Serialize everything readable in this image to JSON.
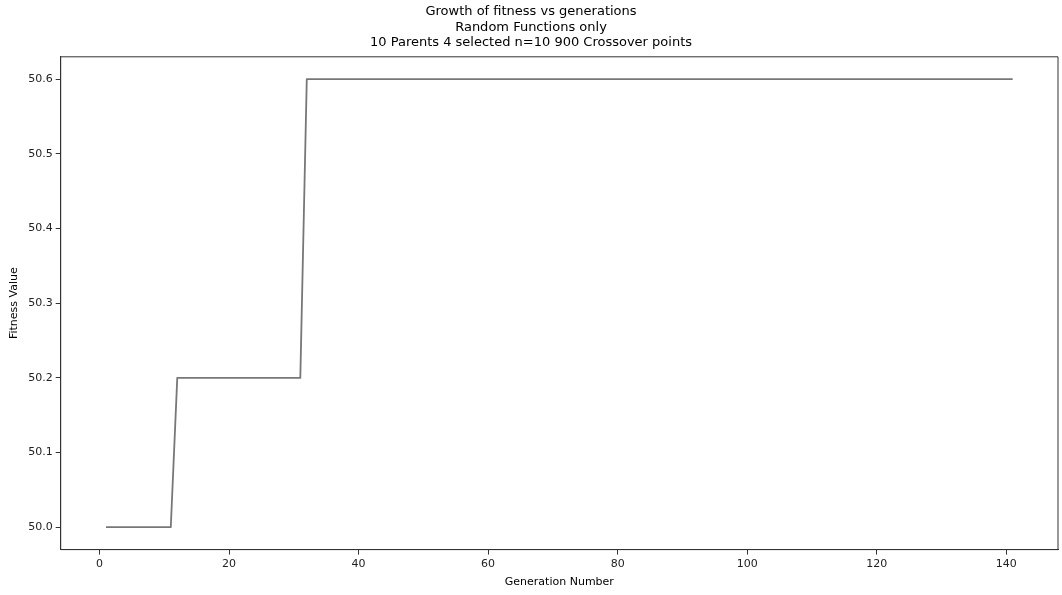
{
  "chart_data": {
    "type": "line",
    "title": "Growth of fitness vs generations\nRandom Functions only\n10 Parents 4 selected n=10 900 Crossover points",
    "xlabel": "Generation Number",
    "ylabel": "Fitness Value",
    "series": [
      {
        "color": "#777777",
        "x": [
          1,
          11,
          12,
          31,
          32,
          141
        ],
        "values": [
          50.0,
          50.0,
          50.2,
          50.2,
          50.6,
          50.6
        ]
      }
    ],
    "xlim": [
      -6,
      148
    ],
    "xticks": [
      0,
      20,
      40,
      60,
      80,
      100,
      120,
      140
    ],
    "ylim": [
      49.97,
      50.63
    ],
    "yticks": [
      {
        "value": 50.0,
        "label": "50.0"
      },
      {
        "value": 50.1,
        "label": "50.1"
      },
      {
        "value": 50.2,
        "label": "50.2"
      },
      {
        "value": 50.3,
        "label": "50.3"
      },
      {
        "value": 50.4,
        "label": "50.4"
      },
      {
        "value": 50.5,
        "label": "50.5"
      },
      {
        "value": 50.6,
        "label": "50.6"
      }
    ],
    "grid": false,
    "marker": "none",
    "line_style": "solid"
  }
}
